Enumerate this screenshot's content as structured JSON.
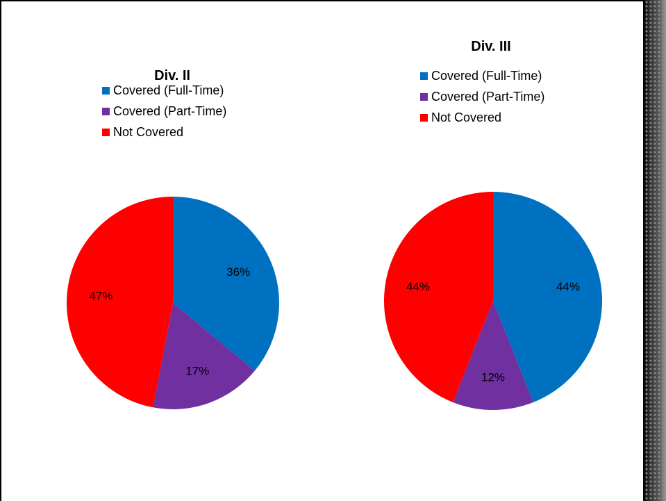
{
  "colors": {
    "covered_full_time": "#0070C0",
    "covered_part_time": "#7030A0",
    "not_covered": "#FF0000"
  },
  "chart_data": [
    {
      "type": "pie",
      "title": "Div. II",
      "legend_position": "top-left",
      "categories": [
        "Covered (Full-Time)",
        "Covered (Part-Time)",
        "Not Covered"
      ],
      "values": [
        36,
        17,
        47
      ],
      "labels": [
        "36%",
        "17%",
        "47%"
      ],
      "colors": [
        "#0070C0",
        "#7030A0",
        "#FF0000"
      ]
    },
    {
      "type": "pie",
      "title": "Div. III",
      "legend_position": "top-left",
      "categories": [
        "Covered (Full-Time)",
        "Covered (Part-Time)",
        "Not Covered"
      ],
      "values": [
        44,
        12,
        44
      ],
      "labels": [
        "44%",
        "12%",
        "44%"
      ],
      "colors": [
        "#0070C0",
        "#7030A0",
        "#FF0000"
      ]
    }
  ]
}
